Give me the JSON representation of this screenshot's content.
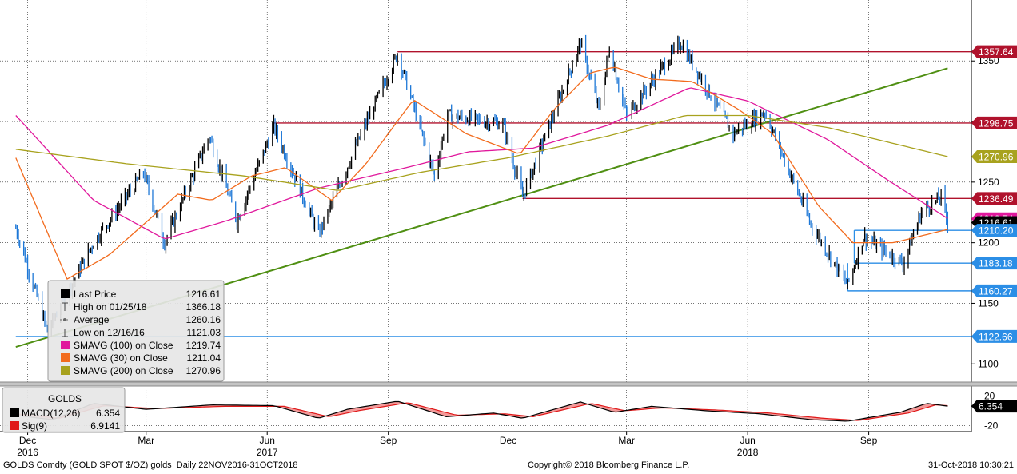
{
  "footer": {
    "left": "GOLDS Comdty (GOLD SPOT $/OZ) golds  Daily 22NOV2016-31OCT2018",
    "center": "Copyright© 2018 Bloomberg Finance L.P.",
    "right": "31-Oct-2018 10:30:21"
  },
  "colors": {
    "background": "#ffffff",
    "grid": "#222222",
    "up_bar": "#000000",
    "down_bar": "#1e78d7",
    "resistance_line": "#b0122c",
    "support_line": "#2b8ee6",
    "trendline": "#4f8f12",
    "sma100": "#e0189c",
    "sma30": "#f26b1d",
    "sma200": "#a8a21e",
    "macd": "#000000",
    "signal": "#e01919",
    "macd_fill": "#f08080",
    "panel_divider": "#888888"
  },
  "chart_data": [
    {
      "type": "line",
      "title": "GOLDS Comdty (GOLD SPOT $/OZ) golds",
      "period": "Daily 22NOV2016-31OCT2018",
      "x_range": [
        "2016-11-22",
        "2018-10-31"
      ],
      "x_ticks": [
        "Dec",
        "Mar",
        "Jun",
        "Sep",
        "Dec",
        "Mar",
        "Jun",
        "Sep"
      ],
      "x_tick_dates": [
        "2016-12-01",
        "2017-03-01",
        "2017-06-01",
        "2017-09-01",
        "2017-12-01",
        "2018-03-01",
        "2018-06-01",
        "2018-09-01"
      ],
      "x_years": [
        "2016",
        "2017",
        "2018"
      ],
      "x_year_dates": [
        "2016-12-01",
        "2017-06-01",
        "2018-06-01"
      ],
      "ylim": [
        1085,
        1395
      ],
      "y_ticks": [
        1100,
        1150,
        1200,
        1250,
        1300,
        1350
      ],
      "grid": true,
      "price_series": {
        "name": "Last Price",
        "dates": [
          "2016-11-22",
          "2016-12-16",
          "2017-01-20",
          "2017-02-27",
          "2017-03-15",
          "2017-04-18",
          "2017-05-09",
          "2017-06-06",
          "2017-07-10",
          "2017-08-10",
          "2017-09-08",
          "2017-10-06",
          "2017-10-16",
          "2017-11-27",
          "2017-12-12",
          "2018-01-25",
          "2018-02-08",
          "2018-02-16",
          "2018-03-01",
          "2018-04-11",
          "2018-05-21",
          "2018-06-14",
          "2018-07-19",
          "2018-08-16",
          "2018-08-28",
          "2018-09-27",
          "2018-10-11",
          "2018-10-26",
          "2018-10-31"
        ],
        "values": [
          1212,
          1127,
          1200,
          1258,
          1200,
          1288,
          1218,
          1296,
          1207,
          1286,
          1356,
          1255,
          1305,
          1298,
          1238,
          1365,
          1310,
          1360,
          1305,
          1365,
          1290,
          1308,
          1215,
          1165,
          1205,
          1183,
          1225,
          1238,
          1216.61
        ]
      },
      "moving_averages": [
        {
          "name": "SMAVG (100)  on Close",
          "value": 1219.74,
          "dates": [
            "2016-11-22",
            "2017-01-20",
            "2017-03-15",
            "2017-05-01",
            "2017-07-10",
            "2017-09-15",
            "2017-11-01",
            "2017-12-20",
            "2018-02-15",
            "2018-04-18",
            "2018-06-01",
            "2018-08-01",
            "2018-09-15",
            "2018-10-31"
          ],
          "values": [
            1305,
            1235,
            1203,
            1218,
            1245,
            1262,
            1275,
            1278,
            1297,
            1328,
            1317,
            1285,
            1252,
            1220
          ]
        },
        {
          "name": "SMAVG (30)  on Close",
          "value": 1211.04,
          "dates": [
            "2016-11-22",
            "2016-12-31",
            "2017-02-01",
            "2017-03-25",
            "2017-04-20",
            "2017-05-20",
            "2017-06-15",
            "2017-07-20",
            "2017-08-15",
            "2017-09-20",
            "2017-10-30",
            "2017-12-10",
            "2018-01-05",
            "2018-02-01",
            "2018-02-20",
            "2018-03-20",
            "2018-04-20",
            "2018-05-25",
            "2018-06-20",
            "2018-07-25",
            "2018-08-20",
            "2018-09-20",
            "2018-10-31"
          ],
          "values": [
            1270,
            1170,
            1190,
            1240,
            1235,
            1255,
            1262,
            1235,
            1265,
            1318,
            1290,
            1273,
            1310,
            1340,
            1345,
            1335,
            1333,
            1310,
            1290,
            1230,
            1200,
            1200,
            1211
          ]
        },
        {
          "name": "SMAVG (200)  on Close",
          "value": 1270.96,
          "dates": [
            "2016-11-22",
            "2017-02-15",
            "2017-05-15",
            "2017-07-25",
            "2017-09-25",
            "2017-12-01",
            "2018-02-15",
            "2018-04-15",
            "2018-06-01",
            "2018-08-01",
            "2018-10-31"
          ],
          "values": [
            1277,
            1265,
            1255,
            1243,
            1258,
            1270,
            1288,
            1305,
            1305,
            1295,
            1271
          ]
        }
      ],
      "horizontal_lines": [
        {
          "label": "1357.64",
          "value": 1357.64,
          "role": "resistance",
          "start": "2017-09-08"
        },
        {
          "label": "1298.75",
          "value": 1298.75,
          "role": "resistance",
          "start": "2017-06-06"
        },
        {
          "label": "1236.49",
          "value": 1236.49,
          "role": "resistance",
          "start": "2017-12-12"
        },
        {
          "label": "1210.20",
          "value": 1210.2,
          "role": "support",
          "start": "2018-08-21"
        },
        {
          "label": "1183.18",
          "value": 1183.18,
          "role": "support",
          "start": "2018-08-21"
        },
        {
          "label": "1160.27",
          "value": 1160.27,
          "role": "support",
          "start": "2018-08-16"
        },
        {
          "label": "1122.66",
          "value": 1122.66,
          "role": "support",
          "start": "2016-11-22"
        }
      ],
      "trendline": {
        "start_date": "2016-11-22",
        "start_value": 1114,
        "end_date": "2018-10-31",
        "end_value": 1344
      },
      "price_labels": [
        {
          "label": "1357.64",
          "value": 1357.64,
          "color": "#b0122c"
        },
        {
          "label": "1298.75",
          "value": 1298.75,
          "color": "#b0122c"
        },
        {
          "label": "1270.96",
          "value": 1270.96,
          "color": "#a8a21e"
        },
        {
          "label": "1236.49",
          "value": 1236.49,
          "color": "#b0122c"
        },
        {
          "label": "1219.74",
          "value": 1219.74,
          "color": "#e0189c"
        },
        {
          "label": "1216.61",
          "value": 1216.61,
          "color": "#000000"
        },
        {
          "label": "1210.20",
          "value": 1210.2,
          "color": "#2b8ee6"
        },
        {
          "label": "1183.18",
          "value": 1183.18,
          "color": "#2b8ee6"
        },
        {
          "label": "1160.27",
          "value": 1160.27,
          "color": "#2b8ee6"
        },
        {
          "label": "1122.66",
          "value": 1122.66,
          "color": "#2b8ee6"
        }
      ],
      "legend": {
        "placement": "bottom-left",
        "rows": [
          {
            "label": "Last Price",
            "value": "1216.61",
            "swatch": "#000000",
            "marker": "box"
          },
          {
            "label": "High on 01/25/18",
            "value": "1366.18",
            "swatch": "#000000",
            "marker": "high"
          },
          {
            "label": "Average",
            "value": "1260.16",
            "swatch": "#777777",
            "marker": "avg"
          },
          {
            "label": "Low on 12/16/16",
            "value": "1121.03",
            "swatch": "#000000",
            "marker": "low"
          },
          {
            "label": "SMAVG (100)  on Close",
            "value": "1219.74",
            "swatch": "#e0189c",
            "marker": "box"
          },
          {
            "label": "SMAVG (30)  on Close",
            "value": "1211.04",
            "swatch": "#f26b1d",
            "marker": "box"
          },
          {
            "label": "SMAVG (200)  on Close",
            "value": "1270.96",
            "swatch": "#a8a21e",
            "marker": "box"
          }
        ]
      }
    },
    {
      "type": "line",
      "title": "GOLDS",
      "ylim": [
        -28,
        28
      ],
      "y_ticks": [
        20,
        -20
      ],
      "series": [
        {
          "name": "MACD(12,26)",
          "value": "6.354",
          "dates": [
            "2016-11-22",
            "2016-12-20",
            "2017-01-20",
            "2017-03-01",
            "2017-04-20",
            "2017-06-06",
            "2017-07-10",
            "2017-08-01",
            "2017-09-08",
            "2017-10-15",
            "2017-11-20",
            "2017-12-12",
            "2018-01-25",
            "2018-02-20",
            "2018-03-20",
            "2018-05-01",
            "2018-06-10",
            "2018-07-20",
            "2018-08-16",
            "2018-09-25",
            "2018-10-15",
            "2018-10-31"
          ],
          "values": [
            -6,
            -12,
            10,
            2,
            8,
            7,
            -10,
            2,
            13,
            -8,
            -3,
            -10,
            12,
            -2,
            6,
            0,
            -4,
            -12,
            -14,
            -2,
            10,
            6.354
          ]
        },
        {
          "name": "Sig(9)",
          "value": "6.9141",
          "dates": [
            "2016-11-22",
            "2016-12-25",
            "2017-01-28",
            "2017-03-08",
            "2017-04-28",
            "2017-06-14",
            "2017-07-18",
            "2017-08-09",
            "2017-09-16",
            "2017-10-23",
            "2017-11-28",
            "2017-12-20",
            "2018-02-02",
            "2018-02-28",
            "2018-03-28",
            "2018-05-09",
            "2018-06-18",
            "2018-07-28",
            "2018-08-24",
            "2018-10-01",
            "2018-10-22",
            "2018-10-31"
          ],
          "values": [
            -4,
            -10,
            7,
            3,
            6,
            6,
            -8,
            0,
            11,
            -6,
            -4,
            -8,
            10,
            0,
            4,
            1,
            -3,
            -10,
            -13,
            -3,
            8,
            6.9141
          ]
        }
      ],
      "price_labels": [
        {
          "label": "6.354",
          "value": 6.354,
          "color": "#000000"
        }
      ],
      "legend": {
        "placement": "top-left"
      }
    }
  ]
}
